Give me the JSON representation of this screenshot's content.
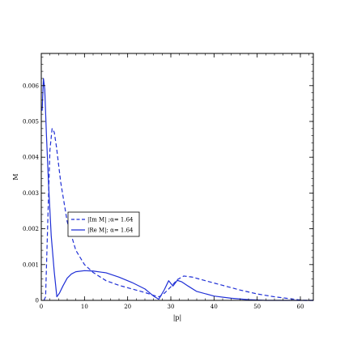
{
  "chart_data": {
    "type": "line",
    "xlabel": "|p|",
    "ylabel": "M",
    "xlim": [
      0,
      63
    ],
    "ylim": [
      0,
      0.0069
    ],
    "x_ticks": [
      0,
      10,
      20,
      30,
      40,
      50,
      60
    ],
    "x_tick_labels": [
      "0",
      "10",
      "20",
      "30",
      "40",
      "50",
      "60"
    ],
    "y_ticks": [
      0,
      0.001,
      0.002,
      0.003,
      0.004,
      0.005,
      0.006
    ],
    "y_tick_labels": [
      "0",
      "0.001",
      "0.002",
      "0.003",
      "0.004",
      "0.005",
      "0.006"
    ],
    "legend_position": "center-left",
    "series": [
      {
        "name": "|Im M| ;α= 1.64",
        "style": "dashed",
        "color": "#1f2fd6",
        "x": [
          0.6,
          1.0,
          1.5,
          2.0,
          2.5,
          3.0,
          3.5,
          4.5,
          6,
          8,
          10,
          12,
          15,
          18,
          21,
          24,
          26,
          27.3,
          28.5,
          30,
          31.5,
          33,
          35,
          38,
          42,
          46,
          50,
          54,
          58,
          60,
          61,
          63
        ],
        "values": [
          0.0,
          0.0001,
          0.0022,
          0.0042,
          0.0048,
          0.0047,
          0.0043,
          0.0033,
          0.0022,
          0.0014,
          0.001,
          0.00078,
          0.00055,
          0.00042,
          0.00032,
          0.00022,
          0.00014,
          0.0001,
          0.0002,
          0.00038,
          0.00058,
          0.00068,
          0.00065,
          0.00055,
          0.00042,
          0.00029,
          0.00018,
          0.0001,
          4e-05,
          1e-05,
          0.0,
          0.0
        ]
      },
      {
        "name": "|Re M|; α= 1.64",
        "style": "solid",
        "color": "#1f2fd6",
        "x": [
          0.2,
          0.5,
          0.8,
          1.2,
          1.7,
          2.3,
          3.0,
          3.6,
          4.2,
          5,
          6,
          7,
          8,
          10,
          12,
          15,
          18,
          21,
          24,
          26,
          27.2,
          28.5,
          29.5,
          30.5,
          31.5,
          32.5,
          34,
          36,
          40,
          44,
          48,
          52,
          56,
          60,
          63
        ],
        "values": [
          0.0053,
          0.0062,
          0.0059,
          0.0046,
          0.0032,
          0.0018,
          0.0008,
          0.0001,
          0.0002,
          0.0004,
          0.00062,
          0.00074,
          0.0008,
          0.00083,
          0.00082,
          0.00077,
          0.00065,
          0.0005,
          0.00032,
          0.00012,
          3e-05,
          0.0003,
          0.00055,
          0.0004,
          0.00056,
          0.00052,
          0.0004,
          0.00025,
          0.00012,
          6e-05,
          2e-05,
          0.0,
          0.0,
          0.0,
          0.0
        ]
      }
    ]
  }
}
